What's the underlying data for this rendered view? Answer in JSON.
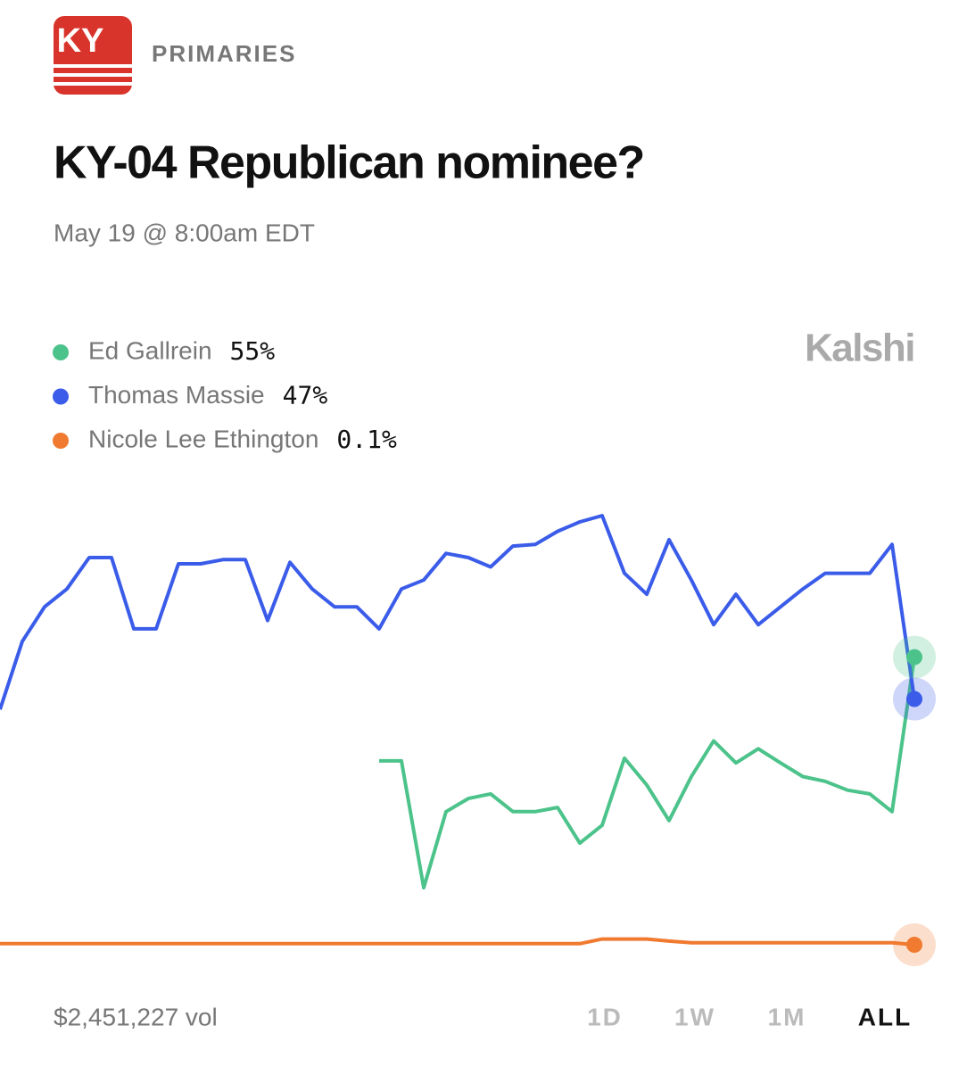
{
  "header": {
    "badge": "KY",
    "category": "PRIMARIES"
  },
  "chart_data": {
    "type": "line",
    "title": "KY-04 Republican nominee?",
    "subtitle": "May 19 @ 8:00am EDT",
    "source": "Kalshi",
    "ylim": [
      0,
      90
    ],
    "series": [
      {
        "name": "Ed Gallrein",
        "color": "#4cc38a",
        "end_label": "55%",
        "values": [
          null,
          null,
          null,
          null,
          null,
          null,
          null,
          null,
          null,
          null,
          null,
          null,
          null,
          null,
          null,
          null,
          null,
          35.2,
          35.2,
          11,
          25.5,
          28,
          28.9,
          25.5,
          25.5,
          26.3,
          19.5,
          22.9,
          35.7,
          30.6,
          23.8,
          32.2,
          39,
          34.8,
          37.5,
          34.8,
          32.2,
          31.3,
          29.6,
          28.9,
          25.5,
          55
        ]
      },
      {
        "name": "Thomas Massie",
        "color": "#3a5ce9",
        "end_label": "47%",
        "values": [
          45,
          58,
          64.6,
          68,
          74,
          74,
          60.4,
          60.4,
          72.8,
          72.8,
          73.6,
          73.6,
          62,
          73.1,
          68,
          64.6,
          64.6,
          60.4,
          68,
          69.7,
          74.8,
          74,
          72.2,
          76.2,
          76.5,
          79,
          80.8,
          82,
          71,
          67,
          77.4,
          69.7,
          61.2,
          67,
          61.2,
          64.6,
          68,
          71,
          71,
          71,
          76.5,
          47
        ]
      },
      {
        "name": "Nicole Lee Ethington",
        "color": "#f07a30",
        "end_label": "0.1%",
        "values": [
          0.3,
          0.3,
          0.3,
          0.3,
          0.3,
          0.3,
          0.3,
          0.3,
          0.3,
          0.3,
          0.3,
          0.3,
          0.3,
          0.3,
          0.3,
          0.3,
          0.3,
          0.3,
          0.3,
          0.3,
          0.3,
          0.3,
          0.3,
          0.3,
          0.3,
          0.3,
          0.3,
          1.2,
          1.2,
          1.2,
          0.8,
          0.5,
          0.5,
          0.5,
          0.5,
          0.5,
          0.5,
          0.5,
          0.5,
          0.5,
          0.5,
          0.1
        ]
      }
    ]
  },
  "footer": {
    "volume": "$2,451,227 vol",
    "ranges": [
      "1D",
      "1W",
      "1M",
      "ALL"
    ],
    "selected_range": 3
  }
}
